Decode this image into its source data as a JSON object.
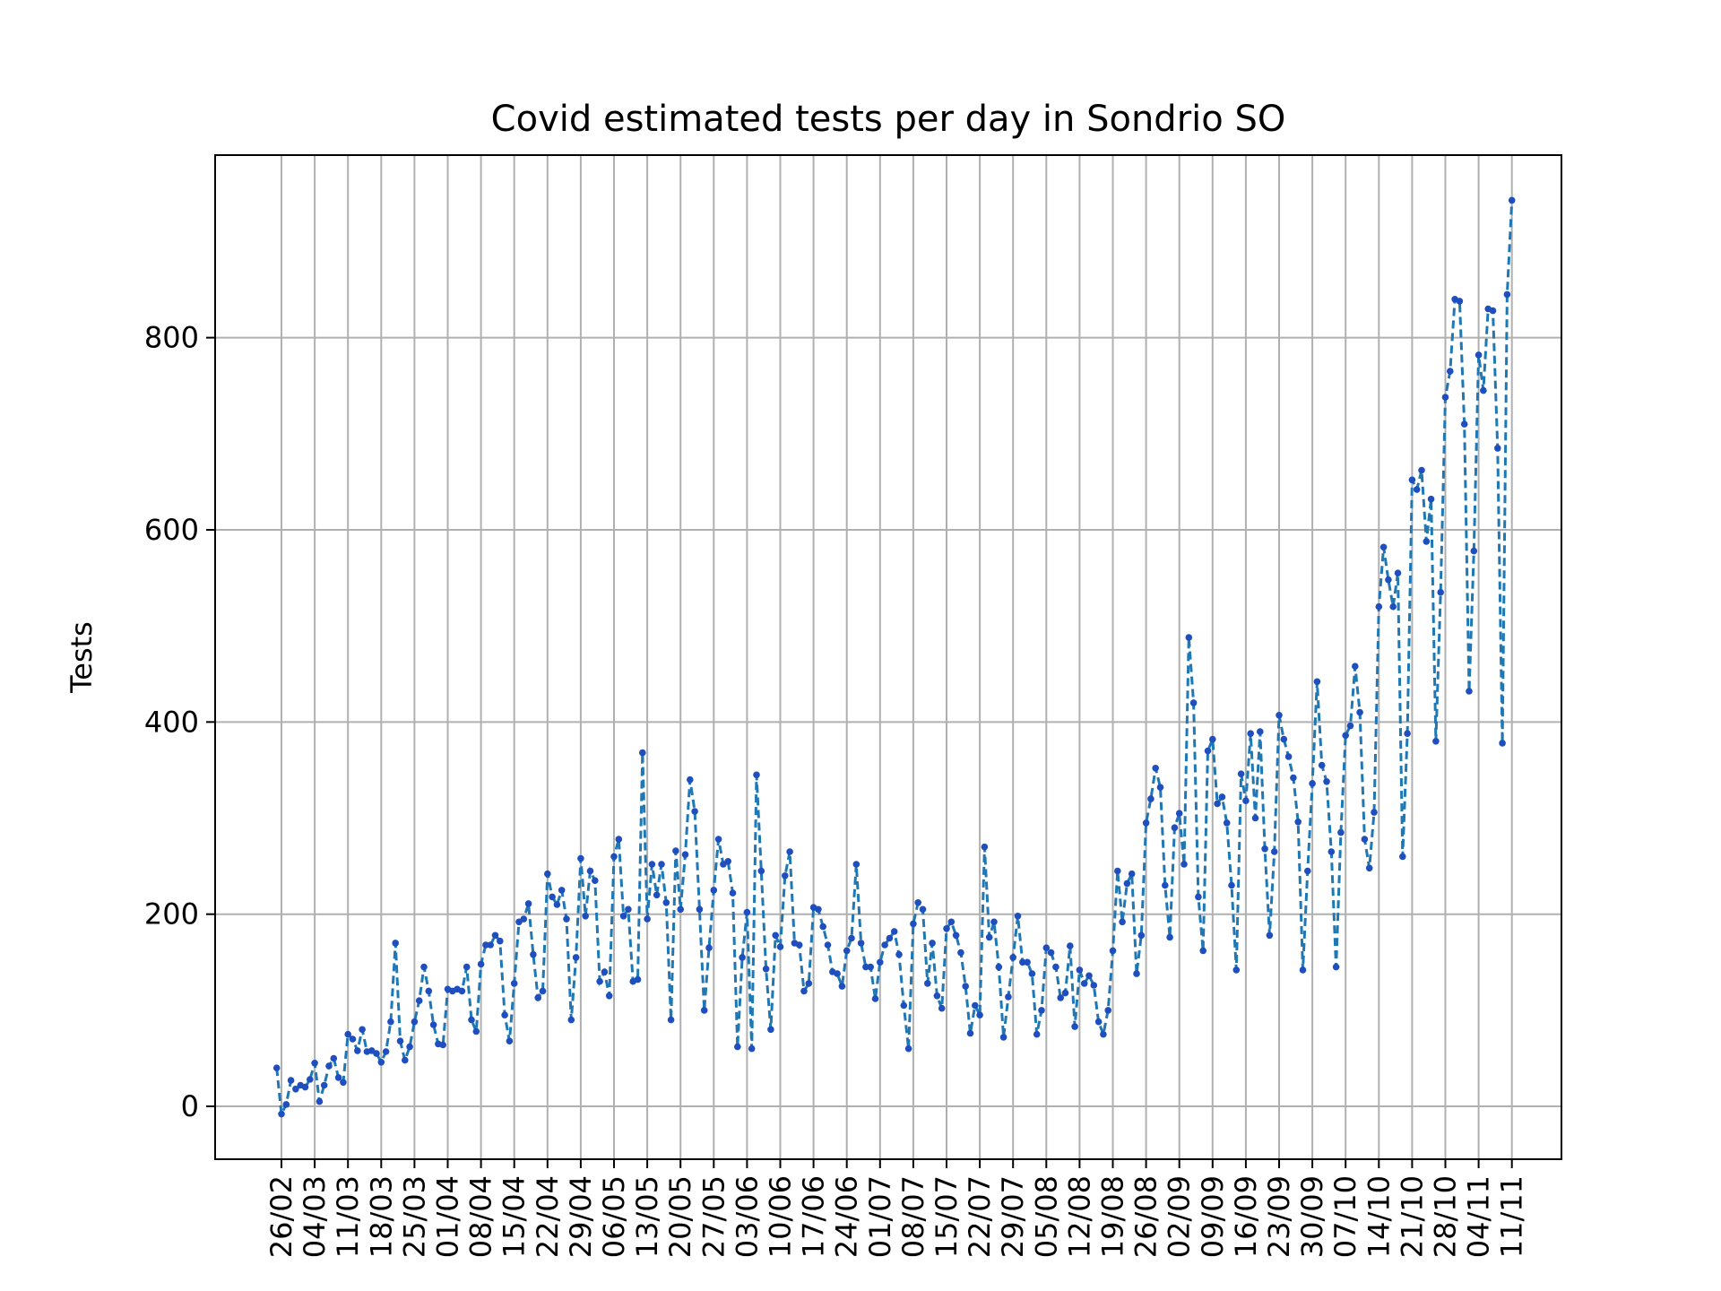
{
  "chart_data": {
    "type": "line",
    "title": "Covid estimated tests per day in Sondrio SO",
    "xlabel": "",
    "ylabel": "Tests",
    "ylim": [
      -55,
      990
    ],
    "y_ticks": [
      0,
      200,
      400,
      600,
      800
    ],
    "grid": true,
    "line_style": "dashed",
    "marker": "dot",
    "colors": {
      "line": "#1f77b4",
      "marker": "#1f4fbf",
      "grid": "#b0b0b0"
    },
    "x_ticks": [
      "26/02",
      "04/03",
      "11/03",
      "18/03",
      "25/03",
      "01/04",
      "08/04",
      "15/04",
      "22/04",
      "29/04",
      "06/05",
      "13/05",
      "20/05",
      "27/05",
      "03/06",
      "10/06",
      "17/06",
      "24/06",
      "01/07",
      "08/07",
      "15/07",
      "22/07",
      "29/07",
      "05/08",
      "12/08",
      "19/08",
      "26/08",
      "02/09",
      "09/09",
      "16/09",
      "23/09",
      "30/09",
      "07/10",
      "14/10",
      "21/10",
      "28/10",
      "04/11",
      "11/11"
    ],
    "start_date": "2020-02-25",
    "values": [
      40,
      -8,
      2,
      27,
      18,
      22,
      20,
      28,
      45,
      5,
      22,
      42,
      50,
      30,
      25,
      75,
      70,
      58,
      80,
      57,
      58,
      55,
      46,
      57,
      88,
      170,
      68,
      48,
      62,
      88,
      110,
      145,
      120,
      85,
      65,
      64,
      122,
      120,
      122,
      120,
      145,
      90,
      78,
      148,
      168,
      168,
      178,
      172,
      95,
      68,
      128,
      192,
      195,
      211,
      158,
      113,
      120,
      242,
      218,
      210,
      225,
      195,
      90,
      155,
      258,
      198,
      245,
      235,
      130,
      140,
      115,
      260,
      278,
      198,
      205,
      130,
      132,
      368,
      195,
      252,
      220,
      252,
      212,
      90,
      266,
      205,
      262,
      340,
      307,
      205,
      100,
      165,
      225,
      278,
      252,
      255,
      222,
      62,
      155,
      202,
      60,
      345,
      245,
      143,
      80,
      178,
      166,
      240,
      265,
      170,
      168,
      120,
      128,
      207,
      205,
      187,
      168,
      140,
      138,
      125,
      162,
      175,
      252,
      170,
      145,
      145,
      112,
      150,
      168,
      175,
      182,
      158,
      105,
      60,
      190,
      212,
      205,
      128,
      170,
      115,
      102,
      185,
      192,
      178,
      160,
      125,
      76,
      105,
      95,
      270,
      176,
      192,
      145,
      72,
      114,
      155,
      198,
      150,
      150,
      138,
      75,
      100,
      165,
      160,
      145,
      113,
      118,
      167,
      83,
      142,
      128,
      136,
      126,
      88,
      75,
      100,
      162,
      245,
      192,
      232,
      242,
      138,
      178,
      295,
      320,
      352,
      332,
      230,
      176,
      290,
      305,
      252,
      488,
      420,
      218,
      162,
      370,
      382,
      315,
      322,
      295,
      230,
      142,
      346,
      318,
      388,
      300,
      390,
      268,
      178,
      265,
      407,
      382,
      364,
      342,
      296,
      142,
      245,
      336,
      442,
      355,
      338,
      265,
      145,
      285,
      386,
      396,
      458,
      410,
      278,
      248,
      306,
      520,
      582,
      548,
      520,
      555,
      260,
      388,
      652,
      642,
      662,
      588,
      632,
      380,
      535,
      738,
      765,
      840,
      838,
      710,
      432,
      578,
      782,
      745,
      830,
      828,
      685,
      378,
      845,
      943
    ]
  }
}
